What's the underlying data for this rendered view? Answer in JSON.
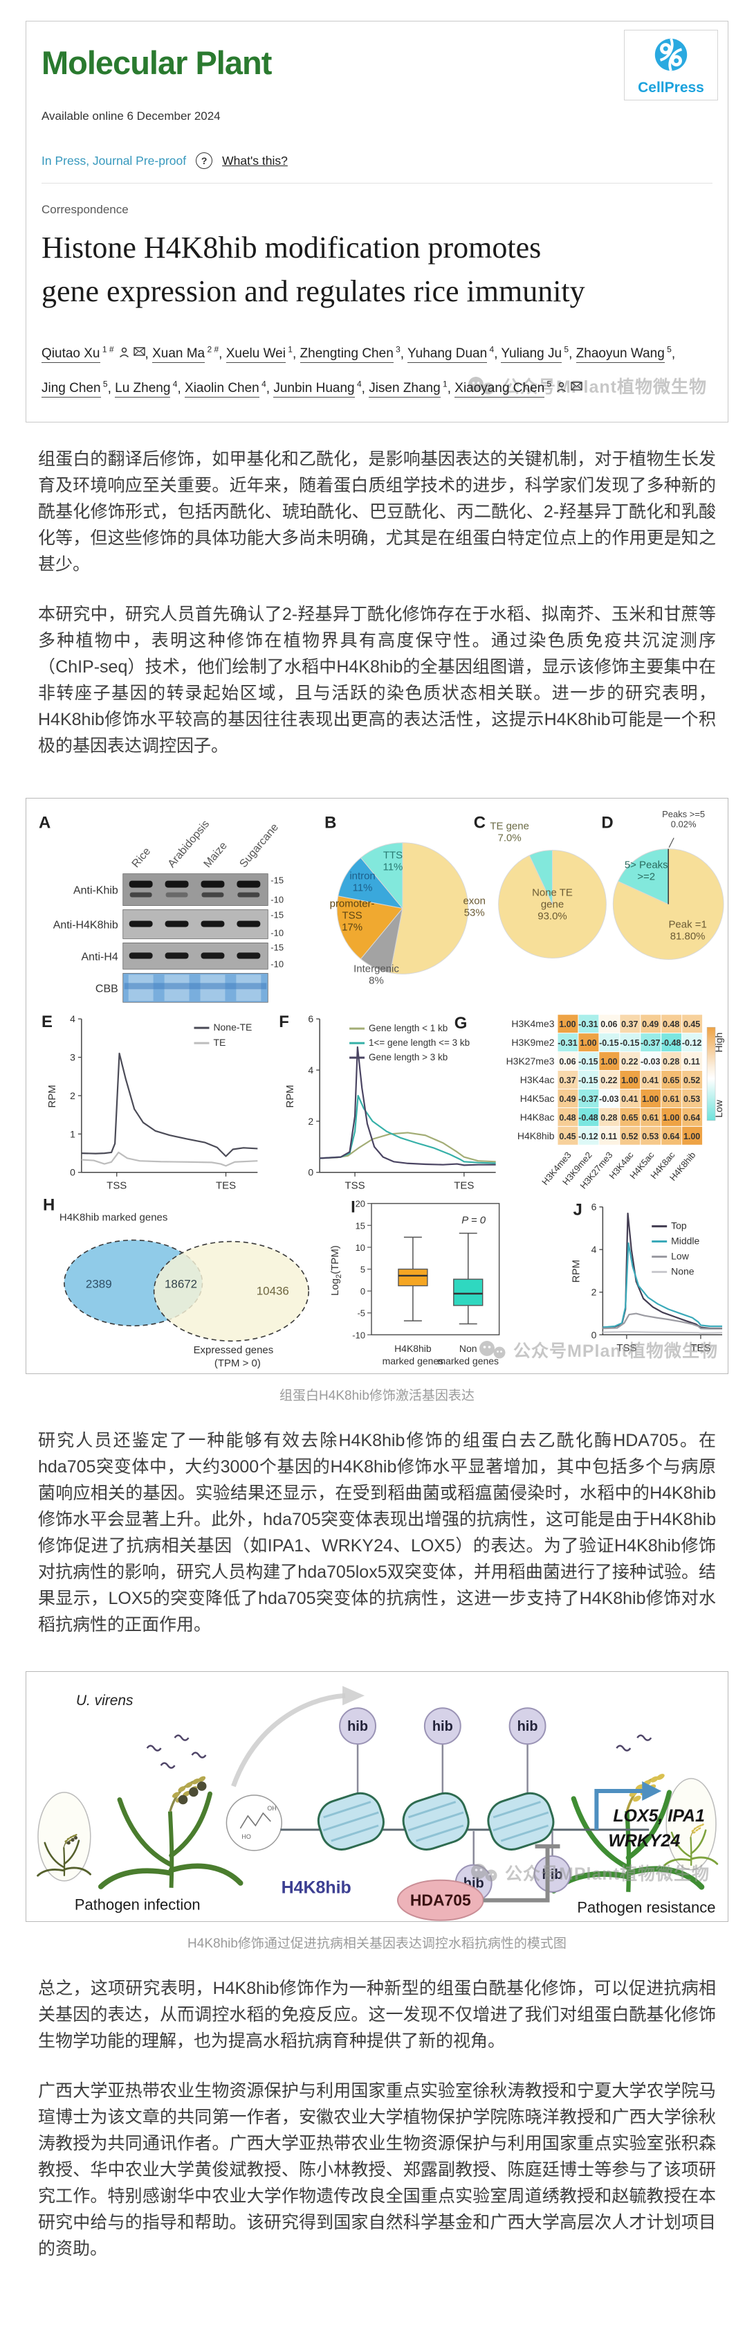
{
  "header": {
    "journal": "Molecular Plant",
    "publisher": "CellPress",
    "available_online": "Available online 6 December 2024",
    "in_press": "In Press, Journal Pre-proof",
    "help_icon": "?",
    "whats_this": "What's this?"
  },
  "article": {
    "section": "Correspondence",
    "title": "Histone H4K8hib modification promotes gene expression and regulates rice immunity",
    "authors": [
      {
        "name": "Qiutao Xu",
        "sup": "1 #",
        "person": true,
        "email": true
      },
      {
        "name": "Xuan Ma",
        "sup": "2 #"
      },
      {
        "name": "Xuelu Wei",
        "sup": "1"
      },
      {
        "name": "Zhengting Chen",
        "sup": "3"
      },
      {
        "name": "Yuhang Duan",
        "sup": "4"
      },
      {
        "name": "Yuliang Ju",
        "sup": "5"
      },
      {
        "name": "Zhaoyun Wang",
        "sup": "5"
      },
      {
        "name": "Jing Chen",
        "sup": "5"
      },
      {
        "name": "Lu Zheng",
        "sup": "4"
      },
      {
        "name": "Xiaolin Chen",
        "sup": "4"
      },
      {
        "name": "Junbin Huang",
        "sup": "4"
      },
      {
        "name": "Jisen Zhang",
        "sup": "1"
      },
      {
        "name": "Xiaoyang Chen",
        "sup": "5",
        "person": true,
        "email": true
      }
    ],
    "watermark": "公众号MPlant植物微生物"
  },
  "body": {
    "p1": "组蛋白的翻译后修饰，如甲基化和乙酰化，是影响基因表达的关键机制，对于植物生长发育及环境响应至关重要。近年来，随着蛋白质组学技术的进步，科学家们发现了多种新的酰基化修饰形式，包括丙酰化、琥珀酰化、巴豆酰化、丙二酰化、2-羟基异丁酰化和乳酸化等，但这些修饰的具体功能大多尚未明确，尤其是在组蛋白特定位点上的作用更是知之甚少。",
    "p2": "本研究中，研究人员首先确认了2-羟基异丁酰化修饰存在于水稻、拟南芥、玉米和甘蔗等多种植物中，表明这种修饰在植物界具有高度保守性。通过染色质免疫共沉淀测序（ChIP-seq）技术，他们绘制了水稻中H4K8hib的全基因组图谱，显示该修饰主要集中在非转座子基因的转录起始区域，且与活跃的染色质状态相关联。进一步的研究表明，H4K8hib修饰水平较高的基因往往表现出更高的表达活性，这提示H4K8hib可能是一个积极的基因表达调控因子。",
    "p3": "研究人员还鉴定了一种能够有效去除H4K8hib修饰的组蛋白去乙酰化酶HDA705。在hda705突变体中，大约3000个基因的H4K8hib修饰水平显著增加，其中包括多个与病原菌响应相关的基因。实验结果还显示，在受到稻曲菌或稻瘟菌侵染时，水稻中的H4K8hib修饰水平会显著上升。此外，hda705突变体表现出增强的抗病性，这可能是由于H4K8hib修饰促进了抗病相关基因（如IPA1、WRKY24、LOX5）的表达。为了验证H4K8hib修饰对抗病性的影响，研究人员构建了hda705lox5双突变体，并用稻曲菌进行了接种试验。结果显示，LOX5的突变降低了hda705突变体的抗病性，这进一步支持了H4K8hib修饰对水稻抗病性的正面作用。",
    "p4": "总之，这项研究表明，H4K8hib修饰作为一种新型的组蛋白酰基化修饰，可以促进抗病相关基因的表达，从而调控水稻的免疫反应。这一发现不仅增进了我们对组蛋白酰基化修饰生物学功能的理解，也为提高水稻抗病育种提供了新的视角。",
    "p5": "广西大学亚热带农业生物资源保护与利用国家重点实验室徐秋涛教授和宁夏大学农学院马瑄博士为该文章的共同第一作者，安徽农业大学植物保护学院陈晓洋教授和广西大学徐秋涛教授为共同通讯作者。广西大学亚热带农业生物资源保护与利用国家重点实验室张积森教授、华中农业大学黄俊斌教授、陈小林教授、郑露副教授、陈庭廷博士等参与了该项研究工作。特别感谢华中农业大学作物遗传改良全国重点实验室周道绣教授和赵毓教授在本研究中给与的指导和帮助。该研究得到国家自然科学基金和广西大学高层次人才计划项目的资助。"
  },
  "figure1": {
    "caption": "组蛋白H4K8hib修饰激活基因表达",
    "panel_a": {
      "label": "A",
      "lanes": [
        "Rice",
        "Arabidopsis",
        "Maize",
        "Sugarcane"
      ],
      "rows": [
        "Anti-Khib",
        "Anti-H4K8hib",
        "Anti-H4",
        "CBB"
      ],
      "markers": [
        "-15",
        "-10"
      ]
    },
    "panel_b": {
      "label": "B",
      "type": "pie",
      "slices": [
        {
          "name": "exon",
          "value": 53,
          "pct": "53%",
          "color": "#f7df99",
          "display": [
            "exon",
            "53%"
          ],
          "text_color": "#6b5b35"
        },
        {
          "name": "Intergenic",
          "value": 8,
          "pct": "8%",
          "color": "#a3a3a3",
          "display": [
            "Intergenic",
            "8%"
          ],
          "text_color": "#555555"
        },
        {
          "name": "promoter-TSS",
          "value": 17,
          "pct": "17%",
          "color": "#f0a930",
          "display": [
            "promoter-",
            "TSS",
            "17%"
          ],
          "text_color": "#5b4413"
        },
        {
          "name": "intron",
          "value": 11,
          "pct": "11%",
          "color": "#3aa8dc",
          "display": [
            "intron",
            "11%"
          ],
          "text_color": "#1d5f8a"
        },
        {
          "name": "TTS",
          "value": 11,
          "pct": "11%",
          "color": "#82e8dc",
          "display": [
            "TTS",
            "11%"
          ],
          "text_color": "#2a7a72"
        }
      ]
    },
    "panel_c": {
      "label": "C",
      "type": "pie",
      "slices": [
        {
          "name": "None TE gene",
          "value": 93,
          "pct": "93.0%",
          "color": "#f7df99",
          "display": [
            "None TE",
            "gene",
            "93.0%"
          ],
          "text_color": "#6b5b35"
        },
        {
          "name": "TE gene",
          "value": 7,
          "pct": "7.0%",
          "color": "#82e8dc",
          "display": [
            "TE gene",
            "7.0%"
          ],
          "text_color": "#6b6b45"
        }
      ]
    },
    "panel_d": {
      "label": "D",
      "type": "pie",
      "slices": [
        {
          "name": "Peak =1",
          "value": 81.8,
          "pct": "81.80%",
          "color": "#f7df99",
          "display": [
            "Peak =1",
            "81.80%"
          ],
          "text_color": "#6b5b35"
        },
        {
          "name": "5> Peaks >=2",
          "value": 18.18,
          "pct": "",
          "color": "#82e8dc",
          "display": [
            "5> Peaks",
            ">=2"
          ],
          "text_color": "#2a6b5f"
        },
        {
          "name": "Peaks >=5",
          "value": 0.02,
          "pct": "0.02%",
          "color": "#444444",
          "display": [
            "Peaks >=5",
            "0.02%"
          ],
          "text_color": "#444444"
        }
      ]
    },
    "panel_e": {
      "label": "E",
      "ylabel": "RPM",
      "ymax": 4,
      "yticks": [
        0,
        1,
        2,
        3,
        4
      ],
      "xticks": [
        "TSS",
        "TES"
      ],
      "series": [
        {
          "name": "None-TE",
          "color": "#4b4b57",
          "points": [
            [
              0,
              0.5
            ],
            [
              0.08,
              0.49
            ],
            [
              0.13,
              0.5
            ],
            [
              0.17,
              0.52
            ],
            [
              0.19,
              0.75
            ],
            [
              0.215,
              3.1
            ],
            [
              0.25,
              2.45
            ],
            [
              0.3,
              1.65
            ],
            [
              0.35,
              1.3
            ],
            [
              0.42,
              1.08
            ],
            [
              0.5,
              0.97
            ],
            [
              0.6,
              0.87
            ],
            [
              0.7,
              0.78
            ],
            [
              0.77,
              0.65
            ],
            [
              0.82,
              0.42
            ],
            [
              0.86,
              0.6
            ],
            [
              0.92,
              0.64
            ],
            [
              1,
              0.62
            ]
          ]
        },
        {
          "name": "TE",
          "color": "#bdbdbd",
          "points": [
            [
              0,
              0.33
            ],
            [
              0.07,
              0.31
            ],
            [
              0.13,
              0.22
            ],
            [
              0.17,
              0.27
            ],
            [
              0.21,
              0.52
            ],
            [
              0.26,
              0.37
            ],
            [
              0.33,
              0.3
            ],
            [
              0.45,
              0.28
            ],
            [
              0.6,
              0.27
            ],
            [
              0.74,
              0.26
            ],
            [
              0.79,
              0.22
            ],
            [
              0.82,
              0.17
            ],
            [
              0.87,
              0.27
            ],
            [
              1,
              0.3
            ]
          ]
        }
      ]
    },
    "panel_f": {
      "label": "F",
      "ylabel": "RPM",
      "ymax": 6,
      "yticks": [
        0,
        2,
        4,
        6
      ],
      "xticks": [
        "TSS",
        "TES"
      ],
      "series": [
        {
          "name": "Gene length < 1 kb",
          "color": "#a3ad76",
          "points": [
            [
              0,
              0.55
            ],
            [
              0.1,
              0.58
            ],
            [
              0.16,
              0.65
            ],
            [
              0.22,
              0.95
            ],
            [
              0.3,
              1.3
            ],
            [
              0.4,
              1.5
            ],
            [
              0.5,
              1.55
            ],
            [
              0.6,
              1.45
            ],
            [
              0.7,
              1.15
            ],
            [
              0.78,
              0.8
            ],
            [
              0.82,
              0.6
            ],
            [
              0.9,
              0.45
            ],
            [
              1,
              0.42
            ]
          ]
        },
        {
          "name": "1<= gene length <= 3 kb",
          "color": "#36b0a8",
          "points": [
            [
              0,
              0.55
            ],
            [
              0.12,
              0.6
            ],
            [
              0.17,
              0.75
            ],
            [
              0.2,
              1.6
            ],
            [
              0.218,
              3.0
            ],
            [
              0.25,
              2.5
            ],
            [
              0.3,
              2.0
            ],
            [
              0.38,
              1.6
            ],
            [
              0.46,
              1.35
            ],
            [
              0.55,
              1.15
            ],
            [
              0.65,
              0.95
            ],
            [
              0.74,
              0.7
            ],
            [
              0.8,
              0.5
            ],
            [
              0.82,
              0.42
            ],
            [
              0.9,
              0.38
            ],
            [
              1,
              0.36
            ]
          ]
        },
        {
          "name": "Gene length > 3 kb",
          "color": "#4a4462",
          "points": [
            [
              0,
              0.55
            ],
            [
              0.12,
              0.6
            ],
            [
              0.17,
              0.8
            ],
            [
              0.2,
              2.2
            ],
            [
              0.215,
              4.9
            ],
            [
              0.24,
              3.3
            ],
            [
              0.27,
              1.9
            ],
            [
              0.31,
              1.0
            ],
            [
              0.36,
              0.6
            ],
            [
              0.42,
              0.42
            ],
            [
              0.5,
              0.35
            ],
            [
              0.6,
              0.32
            ],
            [
              0.7,
              0.3
            ],
            [
              0.78,
              0.33
            ],
            [
              0.82,
              0.28
            ],
            [
              0.9,
              0.3
            ],
            [
              1,
              0.3
            ]
          ]
        }
      ]
    },
    "panel_g": {
      "label": "G",
      "rows": [
        "H3K4me3",
        "H3K9me2",
        "H3K27me3",
        "H3K4ac",
        "H4K5ac",
        "H4K8ac",
        "H4K8hib"
      ],
      "cols": [
        "H3K4me3",
        "H3K9me2",
        "H3K27me3",
        "H3K4ac",
        "H4K5ac",
        "H4K8ac",
        "H4K8hib"
      ],
      "matrix": [
        [
          1.0,
          -0.31,
          0.06,
          0.37,
          0.49,
          0.48,
          0.45
        ],
        [
          -0.31,
          1.0,
          -0.15,
          -0.15,
          -0.37,
          -0.48,
          -0.12
        ],
        [
          0.06,
          -0.15,
          1.0,
          0.22,
          -0.03,
          0.28,
          0.11
        ],
        [
          0.37,
          -0.15,
          0.22,
          1.0,
          0.41,
          0.65,
          0.52
        ],
        [
          0.49,
          -0.37,
          -0.03,
          0.41,
          1.0,
          0.61,
          0.53
        ],
        [
          0.48,
          -0.48,
          0.28,
          0.65,
          0.61,
          1.0,
          0.64
        ],
        [
          0.45,
          -0.12,
          0.11,
          0.52,
          0.53,
          0.64,
          1.0
        ]
      ],
      "legend_high": "High",
      "legend_low": "Low"
    },
    "panel_h": {
      "label": "H",
      "left_label": "H4K8hib marked genes",
      "left_value": "2389",
      "overlap_value": "18672",
      "right_value": "10436",
      "right_label_1": "Expressed genes",
      "right_label_2": "(TPM > 0)"
    },
    "panel_i": {
      "label": "I",
      "ylabel_pre": "Log",
      "ylabel_sub": "2",
      "ylabel_post": "(TPM)",
      "pvalue": "P = 0",
      "yticks": [
        20,
        15,
        10,
        5,
        0,
        -5,
        -10
      ],
      "groups": [
        {
          "name_1": "H4K8hib",
          "name_2": "marked genes",
          "color": "#f5a623",
          "whisker_low": -6.8,
          "q1": 1.2,
          "median": 3.5,
          "q3": 5.0,
          "whisker_high": 12.3
        },
        {
          "name_1": "Non",
          "name_2": "marked genes",
          "color": "#2fd8c0",
          "whisker_low": -7.5,
          "q1": -3.3,
          "median": -0.6,
          "q3": 2.7,
          "whisker_high": 13.2
        }
      ]
    },
    "panel_j": {
      "label": "J",
      "ylabel": "RPM",
      "ymax": 6,
      "yticks": [
        0,
        2,
        4,
        6
      ],
      "xticks": [
        "TSS",
        "TES"
      ],
      "series": [
        {
          "name": "Top",
          "color": "#433d52",
          "points": [
            [
              0,
              0.35
            ],
            [
              0.1,
              0.38
            ],
            [
              0.16,
              0.5
            ],
            [
              0.19,
              1.2
            ],
            [
              0.21,
              5.7
            ],
            [
              0.24,
              4.0
            ],
            [
              0.28,
              2.5
            ],
            [
              0.34,
              1.7
            ],
            [
              0.42,
              1.3
            ],
            [
              0.5,
              1.05
            ],
            [
              0.6,
              0.85
            ],
            [
              0.7,
              0.65
            ],
            [
              0.78,
              0.5
            ],
            [
              0.82,
              0.35
            ],
            [
              0.9,
              0.3
            ],
            [
              1,
              0.3
            ]
          ]
        },
        {
          "name": "Middle",
          "color": "#3aa9b9",
          "points": [
            [
              0,
              0.35
            ],
            [
              0.1,
              0.4
            ],
            [
              0.16,
              0.55
            ],
            [
              0.19,
              1.3
            ],
            [
              0.215,
              4.3
            ],
            [
              0.25,
              3.2
            ],
            [
              0.3,
              2.3
            ],
            [
              0.38,
              1.75
            ],
            [
              0.46,
              1.45
            ],
            [
              0.55,
              1.2
            ],
            [
              0.65,
              1.0
            ],
            [
              0.75,
              0.8
            ],
            [
              0.8,
              0.6
            ],
            [
              0.82,
              0.45
            ],
            [
              0.9,
              0.4
            ],
            [
              1,
              0.4
            ]
          ]
        },
        {
          "name": "Low",
          "color": "#9b9ba2",
          "points": [
            [
              0,
              0.3
            ],
            [
              0.12,
              0.32
            ],
            [
              0.18,
              0.55
            ],
            [
              0.22,
              0.95
            ],
            [
              0.28,
              1.0
            ],
            [
              0.35,
              0.9
            ],
            [
              0.45,
              0.8
            ],
            [
              0.55,
              0.72
            ],
            [
              0.65,
              0.62
            ],
            [
              0.75,
              0.5
            ],
            [
              0.8,
              0.4
            ],
            [
              0.82,
              0.3
            ],
            [
              0.9,
              0.28
            ],
            [
              1,
              0.28
            ]
          ]
        },
        {
          "name": "None",
          "color": "#c9c9ce",
          "points": [
            [
              0,
              0.12
            ],
            [
              0.2,
              0.14
            ],
            [
              0.4,
              0.12
            ],
            [
              0.6,
              0.11
            ],
            [
              0.8,
              0.1
            ],
            [
              0.82,
              0.08
            ],
            [
              1,
              0.1
            ]
          ]
        }
      ]
    }
  },
  "figure2": {
    "caption": "H4K8hib修饰通过促进抗病相关基因表达调控水稻抗病性的模式图",
    "pathogen": "U. virens",
    "infection_label": "Pathogen infection",
    "resistance_label": "Pathogen resistance",
    "hib": "hib",
    "site": "H4K8hib",
    "enzyme": "HDA705",
    "genes_1": "LOX5, IPA1",
    "genes_2": "WRKY24",
    "molecule_labels": [
      "HO",
      "OH"
    ]
  }
}
